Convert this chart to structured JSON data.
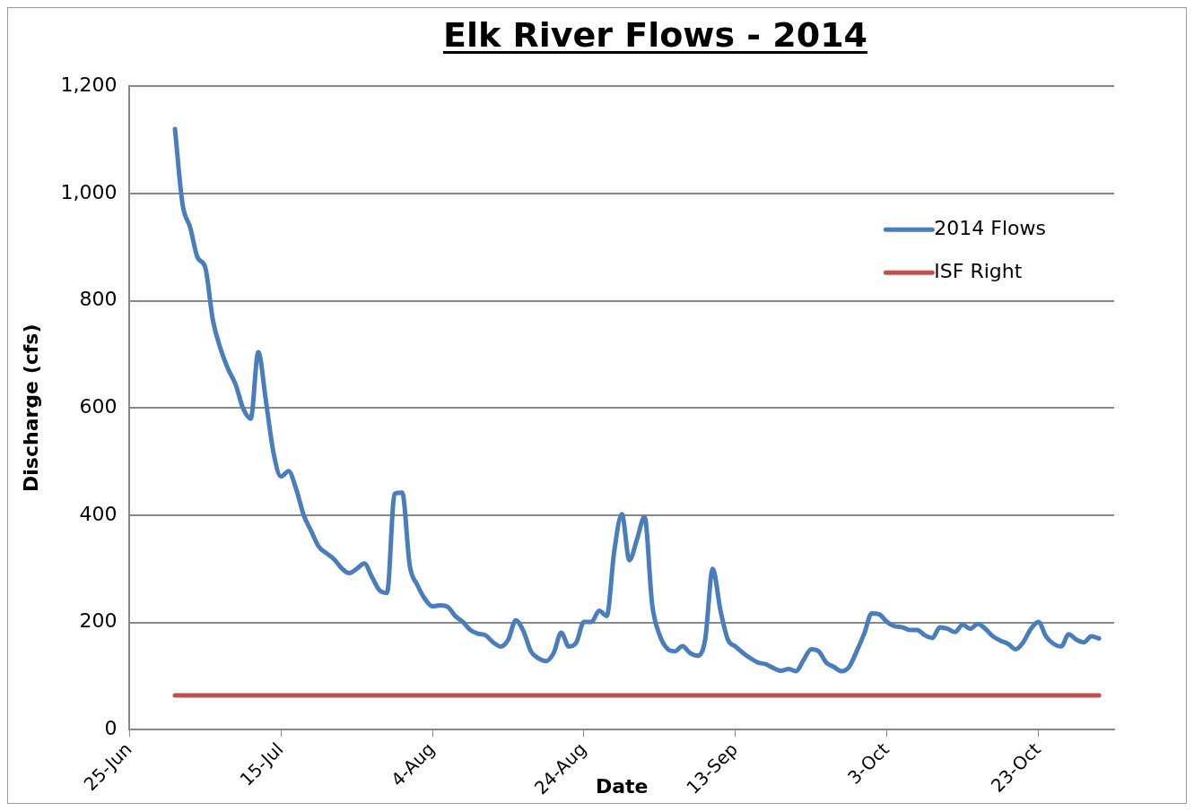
{
  "chart_data": {
    "type": "line",
    "title": "Elk River Flows - 2014",
    "xlabel": "Date",
    "ylabel": "Discharge (cfs)",
    "xlim": [
      "2014-06-25",
      "2014-11-02"
    ],
    "xticks": [
      {
        "value": "2014-06-25",
        "label": "25-Jun"
      },
      {
        "value": "2014-07-15",
        "label": "15-Jul"
      },
      {
        "value": "2014-08-04",
        "label": "4-Aug"
      },
      {
        "value": "2014-08-24",
        "label": "24-Aug"
      },
      {
        "value": "2014-09-13",
        "label": "13-Sep"
      },
      {
        "value": "2014-10-03",
        "label": "3-Oct"
      },
      {
        "value": "2014-10-23",
        "label": "23-Oct"
      }
    ],
    "ylim": [
      0,
      1200
    ],
    "yticks": [
      0,
      200,
      400,
      600,
      800,
      {
        "value": 1000,
        "label": "1,000"
      },
      {
        "value": 1200,
        "label": "1,200"
      }
    ],
    "grid": "y",
    "legend": "top right",
    "marker": "none",
    "line_style": "solid",
    "series": [
      {
        "name": "2014 Flows",
        "color": "#4a7ebb",
        "x": [
          "2014-07-01",
          "2014-07-02",
          "2014-07-03",
          "2014-07-04",
          "2014-07-05",
          "2014-07-06",
          "2014-07-07",
          "2014-07-08",
          "2014-07-09",
          "2014-07-10",
          "2014-07-11",
          "2014-07-12",
          "2014-07-13",
          "2014-07-14",
          "2014-07-15",
          "2014-07-16",
          "2014-07-17",
          "2014-07-18",
          "2014-07-19",
          "2014-07-20",
          "2014-07-21",
          "2014-07-22",
          "2014-07-23",
          "2014-07-24",
          "2014-07-25",
          "2014-07-26",
          "2014-07-27",
          "2014-07-28",
          "2014-07-29",
          "2014-07-30",
          "2014-07-31",
          "2014-08-01",
          "2014-08-02",
          "2014-08-03",
          "2014-08-04",
          "2014-08-05",
          "2014-08-06",
          "2014-08-07",
          "2014-08-08",
          "2014-08-09",
          "2014-08-10",
          "2014-08-11",
          "2014-08-12",
          "2014-08-13",
          "2014-08-14",
          "2014-08-15",
          "2014-08-16",
          "2014-08-17",
          "2014-08-18",
          "2014-08-19",
          "2014-08-20",
          "2014-08-21",
          "2014-08-22",
          "2014-08-23",
          "2014-08-24",
          "2014-08-25",
          "2014-08-26",
          "2014-08-27",
          "2014-08-28",
          "2014-08-29",
          "2014-08-30",
          "2014-08-31",
          "2014-09-01",
          "2014-09-02",
          "2014-09-03",
          "2014-09-04",
          "2014-09-05",
          "2014-09-06",
          "2014-09-07",
          "2014-09-08",
          "2014-09-09",
          "2014-09-10",
          "2014-09-11",
          "2014-09-12",
          "2014-09-13",
          "2014-09-14",
          "2014-09-15",
          "2014-09-16",
          "2014-09-17",
          "2014-09-18",
          "2014-09-19",
          "2014-09-20",
          "2014-09-21",
          "2014-09-22",
          "2014-09-23",
          "2014-09-24",
          "2014-09-25",
          "2014-09-26",
          "2014-09-27",
          "2014-09-28",
          "2014-09-29",
          "2014-09-30",
          "2014-10-01",
          "2014-10-02",
          "2014-10-03",
          "2014-10-04",
          "2014-10-05",
          "2014-10-06",
          "2014-10-07",
          "2014-10-08",
          "2014-10-09",
          "2014-10-10",
          "2014-10-11",
          "2014-10-12",
          "2014-10-13",
          "2014-10-14",
          "2014-10-15",
          "2014-10-16",
          "2014-10-17",
          "2014-10-18",
          "2014-10-19",
          "2014-10-20",
          "2014-10-21",
          "2014-10-22",
          "2014-10-23",
          "2014-10-24",
          "2014-10-25",
          "2014-10-26",
          "2014-10-27",
          "2014-10-28",
          "2014-10-29",
          "2014-10-30",
          "2014-10-31"
        ],
        "values": [
          1120,
          980,
          937,
          880,
          862,
          764,
          711,
          673,
          644,
          599,
          580,
          704,
          614,
          517,
          472,
          482,
          449,
          400,
          370,
          341,
          329,
          318,
          301,
          292,
          300,
          310,
          285,
          260,
          255,
          440,
          442,
          306,
          270,
          244,
          230,
          232,
          229,
          212,
          201,
          186,
          179,
          176,
          163,
          155,
          168,
          204,
          184,
          146,
          133,
          128,
          143,
          181,
          155,
          163,
          201,
          201,
          222,
          212,
          333,
          402,
          316,
          355,
          397,
          234,
          176,
          151,
          146,
          156,
          143,
          138,
          168,
          300,
          224,
          168,
          155,
          143,
          133,
          125,
          122,
          115,
          110,
          113,
          109,
          130,
          150,
          146,
          125,
          117,
          109,
          117,
          146,
          179,
          217,
          215,
          201,
          193,
          191,
          186,
          186,
          176,
          171,
          191,
          188,
          182,
          196,
          188,
          197,
          188,
          174,
          166,
          160,
          150,
          163,
          188,
          201,
          174,
          160,
          155,
          178,
          168,
          163,
          174,
          170
        ]
      },
      {
        "name": "ISF Right",
        "color": "#c0504d",
        "x": [
          "2014-07-01",
          "2014-10-31"
        ],
        "values": [
          64,
          64
        ]
      }
    ]
  }
}
